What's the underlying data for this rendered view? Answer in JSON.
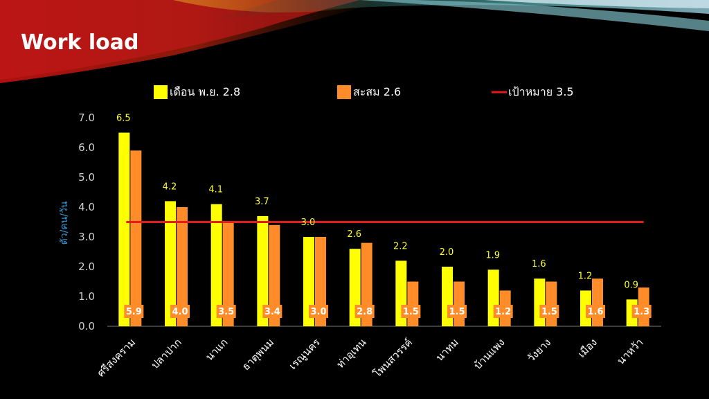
{
  "header": {
    "title": "Work load"
  },
  "colors": {
    "series_month": "#ffff00",
    "series_cumulative": "#ff8c29",
    "target_line": "#e51c1c",
    "value_label_month": "#ffff33",
    "value_label_cum_bg": "#ff8c29"
  },
  "chart_data": {
    "type": "bar",
    "title": "",
    "xlabel": "",
    "ylabel": "ตัว/คน/วัน",
    "ylim": [
      0,
      7
    ],
    "yticks": [
      "0.0",
      "1.0",
      "2.0",
      "3.0",
      "4.0",
      "5.0",
      "6.0",
      "7.0"
    ],
    "legend_position": "top",
    "categories": [
      "ศรีสงคราม",
      "ปลาปาก",
      "นาแก",
      "ธาตุพนม",
      "เรณูนคร",
      "ท่าอุเทน",
      "โพนสวรรค์",
      "นาทม",
      "บ้านแพง",
      "วังยาง",
      "เมือง",
      "นาหว้า"
    ],
    "series": [
      {
        "name": "เดือน พ.ย. 2.8",
        "values": [
          6.5,
          4.2,
          4.1,
          3.7,
          3.0,
          2.6,
          2.2,
          2.0,
          1.9,
          1.6,
          1.2,
          0.9
        ],
        "labels": [
          "6.5",
          "4.2",
          "4.1",
          "3.7",
          "3.0",
          "2.6",
          "2.2",
          "2.0",
          "1.9",
          "1.6",
          "1.2",
          "0.9"
        ]
      },
      {
        "name": "สะสม 2.6",
        "values": [
          5.9,
          4.0,
          3.5,
          3.4,
          3.0,
          2.8,
          1.5,
          1.5,
          1.2,
          1.5,
          1.6,
          1.3
        ],
        "labels": [
          "5.9",
          "4.0",
          "3.5",
          "3.4",
          "3.0",
          "2.8",
          "1.5",
          "1.5",
          "1.2",
          "1.5",
          "1.6",
          "1.3"
        ]
      }
    ],
    "target": {
      "name": "เป้าหมาย 3.5",
      "value": 3.5
    }
  }
}
